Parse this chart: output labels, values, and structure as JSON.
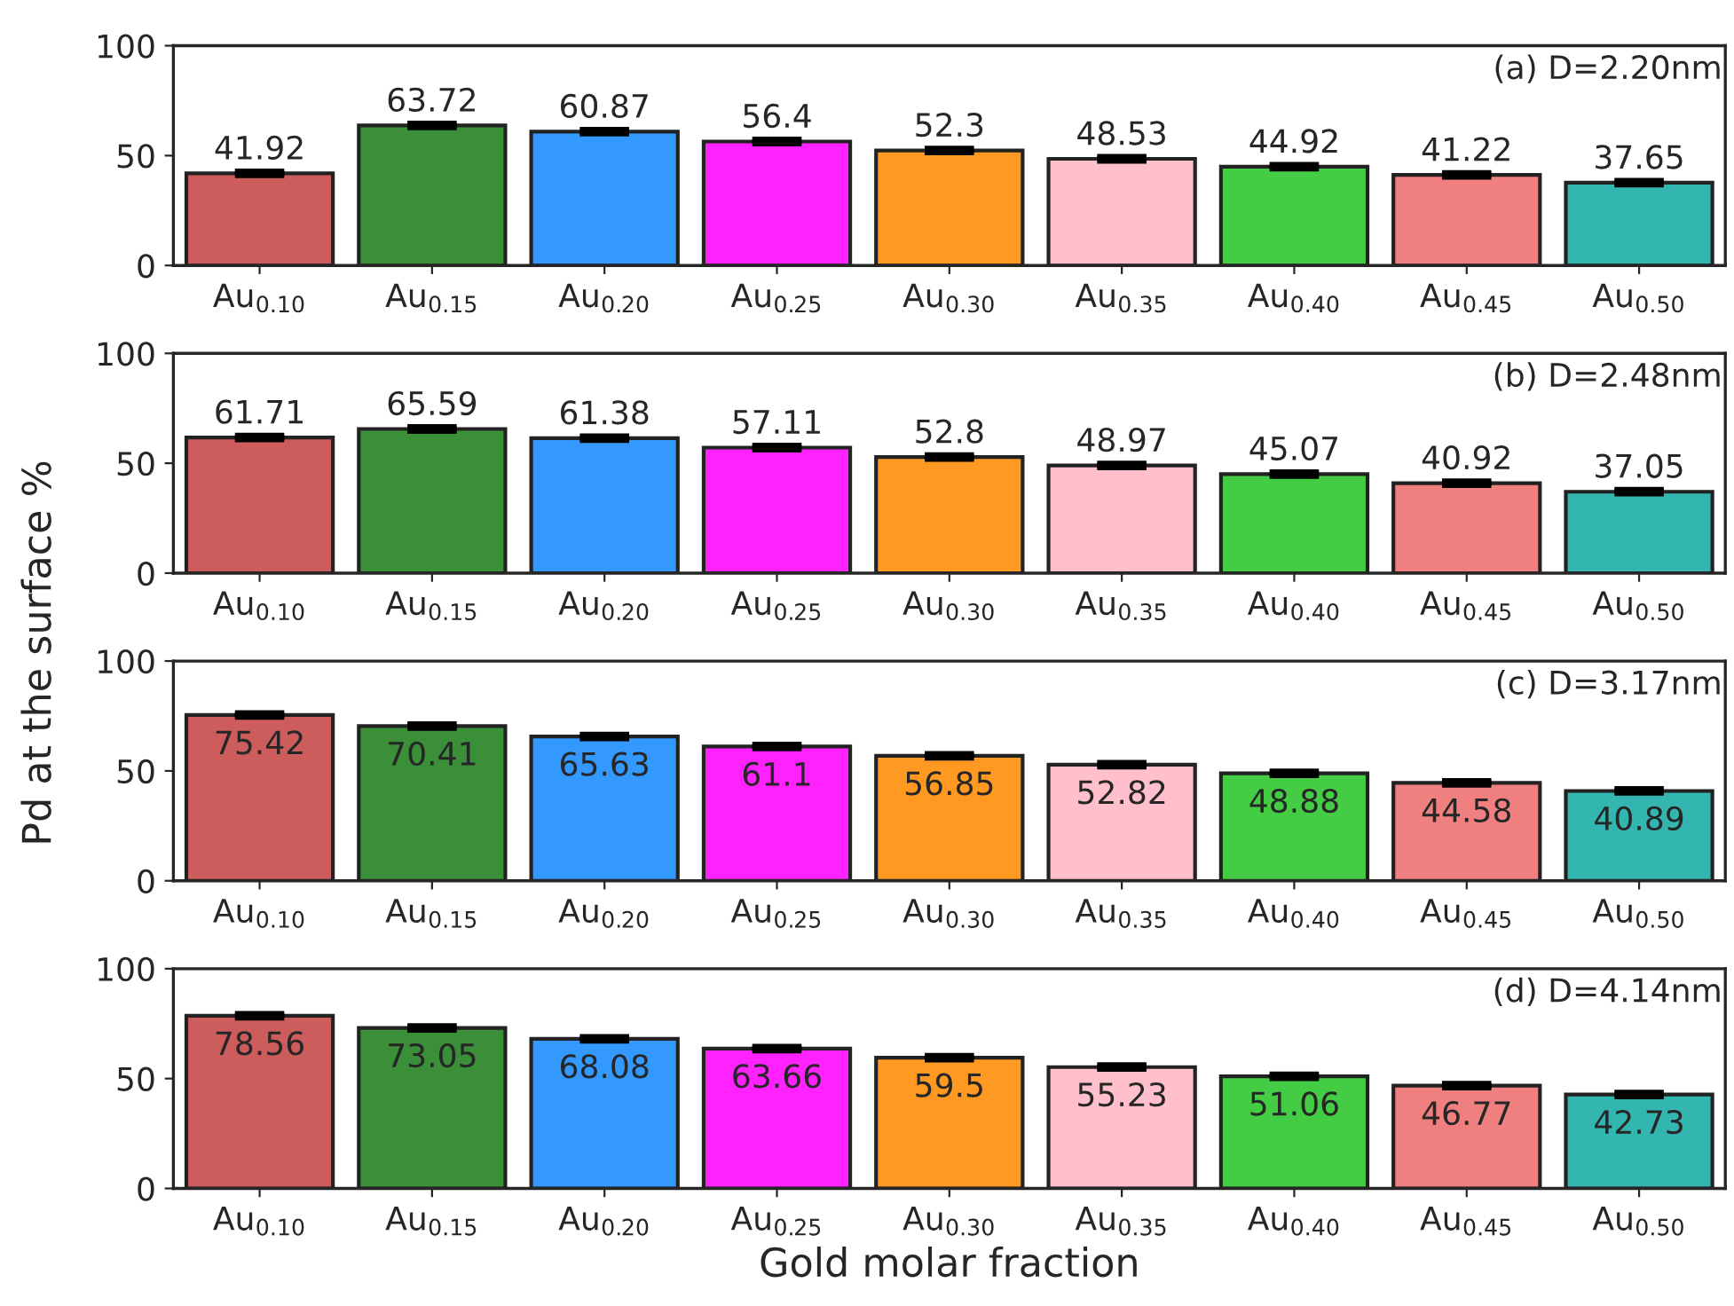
{
  "chart_data": [
    {
      "type": "bar",
      "categories": [
        "Au$_{0.10}$",
        "Au$_{0.15}$",
        "Au$_{0.20}$",
        "Au$_{0.25}$",
        "Au$_{0.30}$",
        "Au$_{0.35}$",
        "Au$_{0.40}$",
        "Au$_{0.45}$",
        "Au$_{0.50}$"
      ],
      "values": [
        41.92,
        63.72,
        60.87,
        56.4,
        52.3,
        48.53,
        44.92,
        41.22,
        37.65
      ],
      "errors": [
        0.5,
        0.5,
        0.5,
        0.5,
        0.5,
        0.5,
        0.5,
        0.5,
        0.5
      ],
      "colors": [
        "#cd5c5c",
        "#3a8f38",
        "#3399ff",
        "#ff22ff",
        "#ff9922",
        "#ffc0cb",
        "#44cc44",
        "#f08080",
        "#33b5b0"
      ],
      "ylim": [
        0,
        100
      ],
      "yticks": [
        0,
        50,
        100
      ],
      "data_labels": true,
      "ylabel": "Pd at the surface %",
      "annotations": [
        "(a) D=2.20nm"
      ],
      "grid": false,
      "legend": false
    },
    {
      "type": "bar",
      "categories": [
        "Au$_{0.10}$",
        "Au$_{0.15}$",
        "Au$_{0.20}$",
        "Au$_{0.25}$",
        "Au$_{0.30}$",
        "Au$_{0.35}$",
        "Au$_{0.40}$",
        "Au$_{0.45}$",
        "Au$_{0.50}$"
      ],
      "values": [
        61.71,
        65.59,
        61.38,
        57.11,
        52.8,
        48.97,
        45.07,
        40.92,
        37.05
      ],
      "errors": [
        0.5,
        0.5,
        0.5,
        0.5,
        0.5,
        0.5,
        0.5,
        0.5,
        0.5
      ],
      "colors": [
        "#cd5c5c",
        "#3a8f38",
        "#3399ff",
        "#ff22ff",
        "#ff9922",
        "#ffc0cb",
        "#44cc44",
        "#f08080",
        "#33b5b0"
      ],
      "ylim": [
        0,
        100
      ],
      "yticks": [
        0,
        50,
        100
      ],
      "data_labels": true,
      "annotations": [
        "(b) D=2.48nm"
      ],
      "grid": false,
      "legend": false
    },
    {
      "type": "bar",
      "categories": [
        "Au$_{0.10}$",
        "Au$_{0.15}$",
        "Au$_{0.20}$",
        "Au$_{0.25}$",
        "Au$_{0.30}$",
        "Au$_{0.35}$",
        "Au$_{0.40}$",
        "Au$_{0.45}$",
        "Au$_{0.50}$"
      ],
      "values": [
        75.42,
        70.41,
        65.63,
        61.1,
        56.85,
        52.82,
        48.88,
        44.58,
        40.89
      ],
      "errors": [
        0.5,
        0.5,
        0.5,
        0.5,
        0.5,
        0.5,
        0.5,
        0.5,
        0.5
      ],
      "colors": [
        "#cd5c5c",
        "#3a8f38",
        "#3399ff",
        "#ff22ff",
        "#ff9922",
        "#ffc0cb",
        "#44cc44",
        "#f08080",
        "#33b5b0"
      ],
      "ylim": [
        0,
        100
      ],
      "yticks": [
        0,
        50,
        100
      ],
      "data_labels": true,
      "annotations": [
        "(c) D=3.17nm"
      ],
      "grid": false,
      "legend": false
    },
    {
      "type": "bar",
      "categories": [
        "Au$_{0.10}$",
        "Au$_{0.15}$",
        "Au$_{0.20}$",
        "Au$_{0.25}$",
        "Au$_{0.30}$",
        "Au$_{0.35}$",
        "Au$_{0.40}$",
        "Au$_{0.45}$",
        "Au$_{0.50}$"
      ],
      "values": [
        78.56,
        73.05,
        68.08,
        63.66,
        59.5,
        55.23,
        51.06,
        46.77,
        42.73
      ],
      "errors": [
        0.5,
        0.5,
        0.5,
        0.5,
        0.5,
        0.5,
        0.5,
        0.5,
        0.5
      ],
      "colors": [
        "#cd5c5c",
        "#3a8f38",
        "#3399ff",
        "#ff22ff",
        "#ff9922",
        "#ffc0cb",
        "#44cc44",
        "#f08080",
        "#33b5b0"
      ],
      "ylim": [
        0,
        100
      ],
      "yticks": [
        0,
        50,
        100
      ],
      "data_labels": true,
      "xlabel": "Gold molar fraction",
      "annotations": [
        "(d) D=4.14nm"
      ],
      "grid": false,
      "legend": false
    }
  ]
}
